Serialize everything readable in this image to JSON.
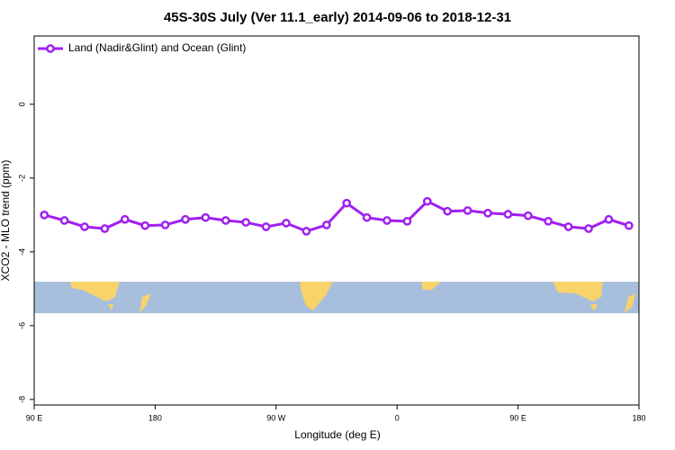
{
  "chart_data": {
    "type": "line",
    "title": "45S-30S July (Ver 11.1_early)   2014-09-06 to 2018-12-31",
    "xlabel": "Longitude (deg E)",
    "ylabel": "XCO2 - MLO trend (ppm)",
    "x": [
      97.5,
      112.5,
      127.5,
      142.5,
      157.5,
      172.5,
      187.5,
      202.5,
      217.5,
      232.5,
      247.5,
      262.5,
      277.5,
      292.5,
      307.5,
      322.5,
      337.5,
      352.5,
      367.5,
      382.5,
      397.5,
      412.5,
      427.5,
      442.5,
      457.5,
      472.5,
      487.5,
      502.5,
      517.5,
      532.5
    ],
    "series": [
      {
        "name": "Land (Nadir&Glint) and Ocean (Glint)",
        "color": "#a020f0",
        "values": [
          -3.0,
          -3.15,
          -3.32,
          -3.37,
          -3.12,
          -3.29,
          -3.27,
          -3.12,
          -3.07,
          -3.15,
          -3.2,
          -3.32,
          -3.22,
          -3.44,
          -3.27,
          -2.68,
          -3.07,
          -3.15,
          -3.17,
          -2.63,
          -2.9,
          -2.88,
          -2.95,
          -2.98,
          -3.02,
          -3.17,
          -3.32,
          -3.37,
          -3.12,
          -3.29
        ]
      }
    ],
    "xlim": [
      90,
      540
    ],
    "xticks": [
      {
        "value": 90,
        "label": "90 E"
      },
      180,
      {
        "value": 270,
        "label": "90 W"
      },
      {
        "value": 360,
        "label": "0"
      },
      {
        "value": 450,
        "label": "90 E"
      },
      {
        "value": 540,
        "label": "180"
      }
    ],
    "ylim": [
      -8.15,
      1.85
    ],
    "yticks": [
      -8,
      -6,
      -4,
      -2,
      0
    ],
    "legend": "top-left"
  }
}
